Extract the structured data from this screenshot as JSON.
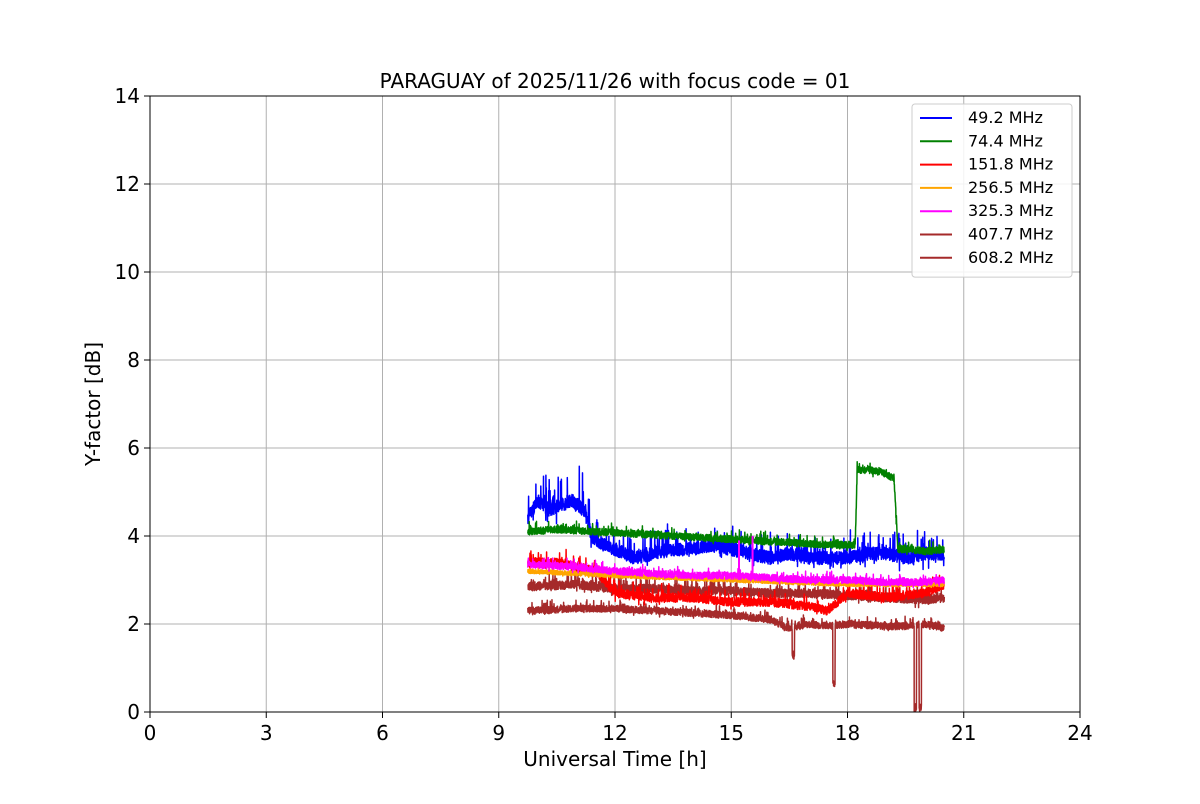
{
  "chart_data": {
    "type": "line",
    "title": "PARAGUAY of 2025/11/26 with focus code = 01",
    "xlabel": "Universal Time [h]",
    "ylabel": "Y-factor [dB]",
    "xlim": [
      0,
      24
    ],
    "ylim": [
      0,
      14
    ],
    "xticks": [
      0,
      3,
      6,
      9,
      12,
      15,
      18,
      21,
      24
    ],
    "yticks": [
      0,
      2,
      4,
      6,
      8,
      10,
      12,
      14
    ],
    "grid": true,
    "legend_position": "top-right",
    "series": [
      {
        "name": " 49.2 MHz",
        "color": "#0000ff",
        "points": [
          [
            9.75,
            4.4
          ],
          [
            10.0,
            4.8
          ],
          [
            10.3,
            4.6
          ],
          [
            10.6,
            4.7
          ],
          [
            10.9,
            4.8
          ],
          [
            11.2,
            4.6
          ],
          [
            11.4,
            4.0
          ],
          [
            11.7,
            3.8
          ],
          [
            12.0,
            3.7
          ],
          [
            12.5,
            3.5
          ],
          [
            13.0,
            3.6
          ],
          [
            13.5,
            3.7
          ],
          [
            14.0,
            3.7
          ],
          [
            14.5,
            3.8
          ],
          [
            15.0,
            3.7
          ],
          [
            15.5,
            3.6
          ],
          [
            16.0,
            3.5
          ],
          [
            16.5,
            3.6
          ],
          [
            17.0,
            3.5
          ],
          [
            17.5,
            3.5
          ],
          [
            18.0,
            3.5
          ],
          [
            18.5,
            3.6
          ],
          [
            19.0,
            3.6
          ],
          [
            19.5,
            3.5
          ],
          [
            20.0,
            3.6
          ],
          [
            20.5,
            3.6
          ]
        ],
        "noise": 0.35,
        "base_noise": 0.15
      },
      {
        "name": " 74.4 MHz",
        "color": "#008000",
        "points": [
          [
            9.75,
            4.1
          ],
          [
            10.5,
            4.15
          ],
          [
            11.5,
            4.1
          ],
          [
            12.5,
            4.05
          ],
          [
            13.5,
            4.0
          ],
          [
            14.5,
            3.95
          ],
          [
            15.5,
            3.9
          ],
          [
            16.5,
            3.85
          ],
          [
            17.5,
            3.8
          ],
          [
            18.2,
            3.8
          ],
          [
            18.25,
            5.5
          ],
          [
            18.5,
            5.5
          ],
          [
            18.9,
            5.45
          ],
          [
            19.2,
            5.3
          ],
          [
            19.3,
            3.7
          ],
          [
            19.6,
            3.7
          ],
          [
            20.0,
            3.65
          ],
          [
            20.5,
            3.7
          ]
        ],
        "noise": 0.12,
        "base_noise": 0.08
      },
      {
        "name": "151.8 MHz",
        "color": "#ff0000",
        "points": [
          [
            9.75,
            3.4
          ],
          [
            10.5,
            3.4
          ],
          [
            11.5,
            3.2
          ],
          [
            12.0,
            2.7
          ],
          [
            13.0,
            2.6
          ],
          [
            14.0,
            2.6
          ],
          [
            15.0,
            2.5
          ],
          [
            16.0,
            2.5
          ],
          [
            17.0,
            2.4
          ],
          [
            17.5,
            2.3
          ],
          [
            18.0,
            2.7
          ],
          [
            19.0,
            2.6
          ],
          [
            20.0,
            2.7
          ],
          [
            20.5,
            2.9
          ]
        ],
        "noise": 0.18,
        "base_noise": 0.1
      },
      {
        "name": "256.5 MHz",
        "color": "#ffa500",
        "points": [
          [
            9.75,
            3.2
          ],
          [
            12.0,
            3.1
          ],
          [
            15.0,
            3.0
          ],
          [
            18.0,
            2.9
          ],
          [
            20.5,
            2.9
          ]
        ],
        "noise": 0.05,
        "base_noise": 0.05
      },
      {
        "name": "325.3 MHz",
        "color": "#ff00ff",
        "points": [
          [
            9.75,
            3.35
          ],
          [
            11.0,
            3.3
          ],
          [
            12.0,
            3.2
          ],
          [
            13.0,
            3.15
          ],
          [
            14.0,
            3.1
          ],
          [
            15.0,
            3.1
          ],
          [
            16.0,
            3.05
          ],
          [
            17.0,
            3.0
          ],
          [
            18.0,
            3.0
          ],
          [
            19.0,
            2.95
          ],
          [
            20.0,
            2.95
          ],
          [
            20.5,
            3.0
          ]
        ],
        "noise": 0.1,
        "base_noise": 0.08
      },
      {
        "name": "407.7 MHz",
        "color": "#a52a2a",
        "points": [
          [
            9.75,
            2.85
          ],
          [
            11.0,
            2.9
          ],
          [
            12.0,
            2.8
          ],
          [
            13.0,
            2.8
          ],
          [
            14.0,
            2.75
          ],
          [
            15.0,
            2.75
          ],
          [
            16.0,
            2.7
          ],
          [
            17.0,
            2.7
          ],
          [
            18.0,
            2.65
          ],
          [
            19.0,
            2.6
          ],
          [
            20.0,
            2.55
          ],
          [
            20.5,
            2.6
          ]
        ],
        "noise": 0.2,
        "base_noise": 0.1
      },
      {
        "name": "608.2 MHz",
        "color": "#a52a2a",
        "points": [
          [
            9.75,
            2.3
          ],
          [
            11.0,
            2.35
          ],
          [
            12.0,
            2.35
          ],
          [
            13.0,
            2.3
          ],
          [
            14.0,
            2.25
          ],
          [
            15.0,
            2.2
          ],
          [
            16.0,
            2.1
          ],
          [
            16.5,
            1.9
          ],
          [
            17.0,
            2.0
          ],
          [
            17.5,
            1.95
          ],
          [
            18.0,
            2.0
          ],
          [
            19.0,
            1.95
          ],
          [
            19.5,
            1.95
          ],
          [
            20.0,
            2.0
          ],
          [
            20.5,
            1.9
          ]
        ],
        "noise": 0.12,
        "base_noise": 0.08,
        "dips": [
          [
            16.6,
            1.2
          ],
          [
            17.65,
            0.55
          ],
          [
            19.75,
            0.0
          ],
          [
            19.88,
            0.0
          ]
        ]
      }
    ],
    "spikes": [
      {
        "series": 4,
        "x": 15.2,
        "y": 3.9
      },
      {
        "series": 4,
        "x": 15.55,
        "y": 4.0
      }
    ]
  }
}
